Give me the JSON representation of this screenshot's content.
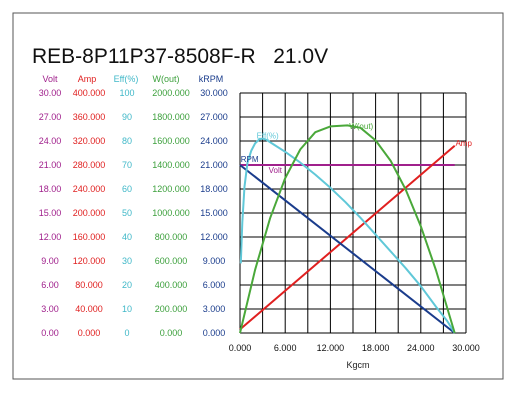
{
  "chart_data": {
    "type": "line",
    "title": "REB-8P11P37-8508F-R   21.0V",
    "xlabel": "Kgcm",
    "x_ticks": [
      "0.000",
      "6.000",
      "12.000",
      "18.000",
      "24.000",
      "30.000"
    ],
    "xlim": [
      0,
      30
    ],
    "grid": true,
    "y_axes": [
      {
        "key": "volt",
        "header": "Volt",
        "color": "#a0208c",
        "ticks": [
          "0.00",
          "3.00",
          "6.00",
          "9.00",
          "12.00",
          "15.00",
          "18.00",
          "21.00",
          "24.00",
          "27.00",
          "30.00"
        ],
        "ylim": [
          0,
          30
        ]
      },
      {
        "key": "amp",
        "header": "Amp",
        "color": "#e02020",
        "ticks": [
          "0.000",
          "40.000",
          "80.000",
          "120.000",
          "160.000",
          "200.000",
          "240.000",
          "280.000",
          "320.000",
          "360.000",
          "400.000"
        ],
        "ylim": [
          0,
          400
        ]
      },
      {
        "key": "eff",
        "header": "Eff(%)",
        "color": "#40b8c8",
        "ticks": [
          "0",
          "10",
          "20",
          "30",
          "40",
          "50",
          "60",
          "70",
          "80",
          "90",
          "100"
        ],
        "ylim": [
          0,
          100
        ]
      },
      {
        "key": "wout",
        "header": "W(out)",
        "color": "#3ca03c",
        "ticks": [
          "0.000",
          "200.000",
          "400.000",
          "600.000",
          "800.000",
          "1000.000",
          "1200.000",
          "1400.000",
          "1600.000",
          "1800.000",
          "2000.000"
        ],
        "ylim": [
          0,
          2000
        ]
      },
      {
        "key": "krpm",
        "header": "kRPM",
        "color": "#1a3c8c",
        "ticks": [
          "0.000",
          "3.000",
          "6.000",
          "9.000",
          "12.000",
          "15.000",
          "18.000",
          "21.000",
          "24.000",
          "27.000",
          "30.000"
        ],
        "ylim": [
          0,
          30
        ]
      }
    ],
    "series": [
      {
        "name": "Volt",
        "axis": "volt",
        "color": "#a0208c",
        "x": [
          0,
          28.5
        ],
        "y": [
          21,
          21
        ]
      },
      {
        "name": "Amp",
        "axis": "amp",
        "color": "#e02020",
        "x": [
          0,
          28.5
        ],
        "y": [
          6,
          312
        ]
      },
      {
        "name": "RPM",
        "axis": "krpm",
        "color": "#1a3c8c",
        "x": [
          0,
          28.5
        ],
        "y": [
          21,
          0
        ]
      },
      {
        "name": "Eff",
        "axis": "eff",
        "color": "#60c8d8",
        "x": [
          0.1,
          0.3,
          0.6,
          1.0,
          1.5,
          2.0,
          2.5,
          3.0,
          3.5,
          4.5,
          6,
          8,
          10,
          12,
          14,
          16,
          18,
          20,
          22,
          24,
          26,
          27.5,
          28.5
        ],
        "y": [
          29,
          46,
          61,
          71,
          76,
          79,
          80.5,
          81,
          80.5,
          78.5,
          75.5,
          71,
          66,
          60.5,
          54.5,
          48,
          41,
          34,
          27,
          19.5,
          11,
          5,
          0
        ]
      },
      {
        "name": "W(out)",
        "axis": "wout",
        "color": "#4aa83a",
        "x": [
          0,
          2,
          4,
          6,
          8,
          10,
          12,
          14.25,
          16,
          18,
          20,
          22,
          24,
          26,
          28.5
        ],
        "y": [
          0,
          527,
          957,
          1291,
          1530,
          1673,
          1722,
          1730,
          1710,
          1605,
          1434,
          1195,
          890,
          525,
          0
        ]
      }
    ],
    "annotations": {
      "rpm": "RPM",
      "eff": "Eff(%)",
      "volt": "Volt",
      "wout": "W(out)",
      "amp": "Amp"
    }
  }
}
